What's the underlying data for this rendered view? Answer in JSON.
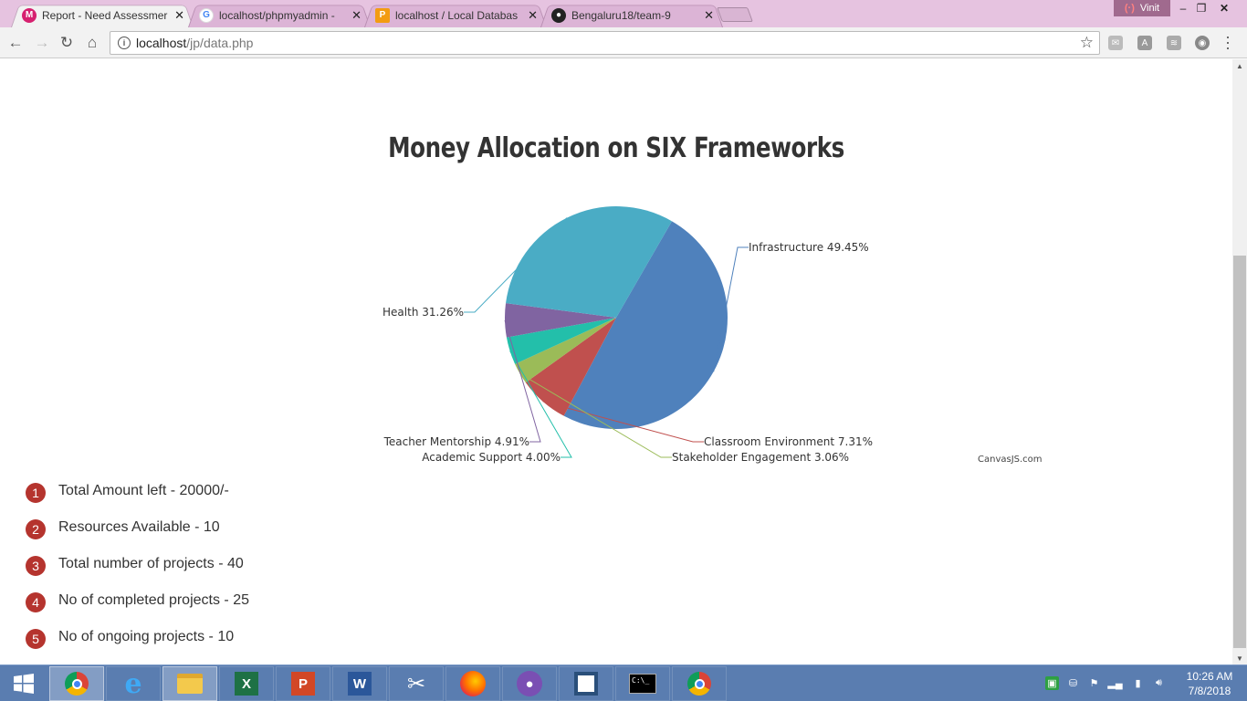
{
  "browser": {
    "tabs": [
      {
        "title": "Report - Need Assessmer",
        "favicon_color": "#d6206f",
        "favicon_glyph": "M",
        "icon": "app-icon",
        "active": true
      },
      {
        "title": "localhost/phpmyadmin -",
        "favicon_color": "#4285f4",
        "favicon_glyph": "G",
        "icon": "google-icon",
        "active": false
      },
      {
        "title": "localhost / Local Databas",
        "favicon_color": "#f39c12",
        "favicon_glyph": "P",
        "icon": "phpmyadmin-icon",
        "active": false
      },
      {
        "title": "Bengaluru18/team-9",
        "favicon_color": "#222222",
        "favicon_glyph": "●",
        "icon": "github-icon",
        "active": false
      }
    ],
    "profile_name": "Vinit",
    "url_host": "localhost",
    "url_path": "/jp/data.php"
  },
  "page": {
    "chart_title": "Money Allocation on SIX Frameworks",
    "credit": "CanvasJS.com",
    "stats": [
      {
        "num": "1",
        "text": "Total Amount left - 20000/-"
      },
      {
        "num": "2",
        "text": "Resources Available - 10"
      },
      {
        "num": "3",
        "text": "Total number of projects - 40"
      },
      {
        "num": "4",
        "text": "No of completed projects - 25"
      },
      {
        "num": "5",
        "text": "No of ongoing projects - 10"
      }
    ]
  },
  "chart_data": {
    "type": "pie",
    "title": "Money Allocation on SIX Frameworks",
    "slices": [
      {
        "label": "Infrastructure",
        "value": 49.45,
        "display": "Infrastructure 49.45%",
        "color": "#4f81bc"
      },
      {
        "label": "Classroom Environment",
        "value": 7.31,
        "display": "Classroom Environment 7.31%",
        "color": "#c0504e"
      },
      {
        "label": "Stakeholder Engagement",
        "value": 3.06,
        "display": "Stakeholder Engagement 3.06%",
        "color": "#9bbb58"
      },
      {
        "label": "Academic Support",
        "value": 4.0,
        "display": "Academic Support 4.00%",
        "color": "#23bfaa"
      },
      {
        "label": "Teacher Mentorship",
        "value": 4.91,
        "display": "Teacher Mentorship 4.91%",
        "color": "#8064a1"
      },
      {
        "label": "Health",
        "value": 31.26,
        "display": "Health 31.26%",
        "color": "#4aacc5"
      }
    ],
    "start_angle_deg": -60
  },
  "taskbar": {
    "apps": [
      "chrome-icon",
      "internet-explorer-icon",
      "file-explorer-icon",
      "excel-icon",
      "powerpoint-icon",
      "word-icon",
      "snipping-tool-icon",
      "firefox-icon",
      "github-desktop-icon",
      "jetbrains-icon",
      "command-prompt-icon",
      "chrome-icon"
    ],
    "time": "10:26 AM",
    "date": "7/8/2018"
  }
}
